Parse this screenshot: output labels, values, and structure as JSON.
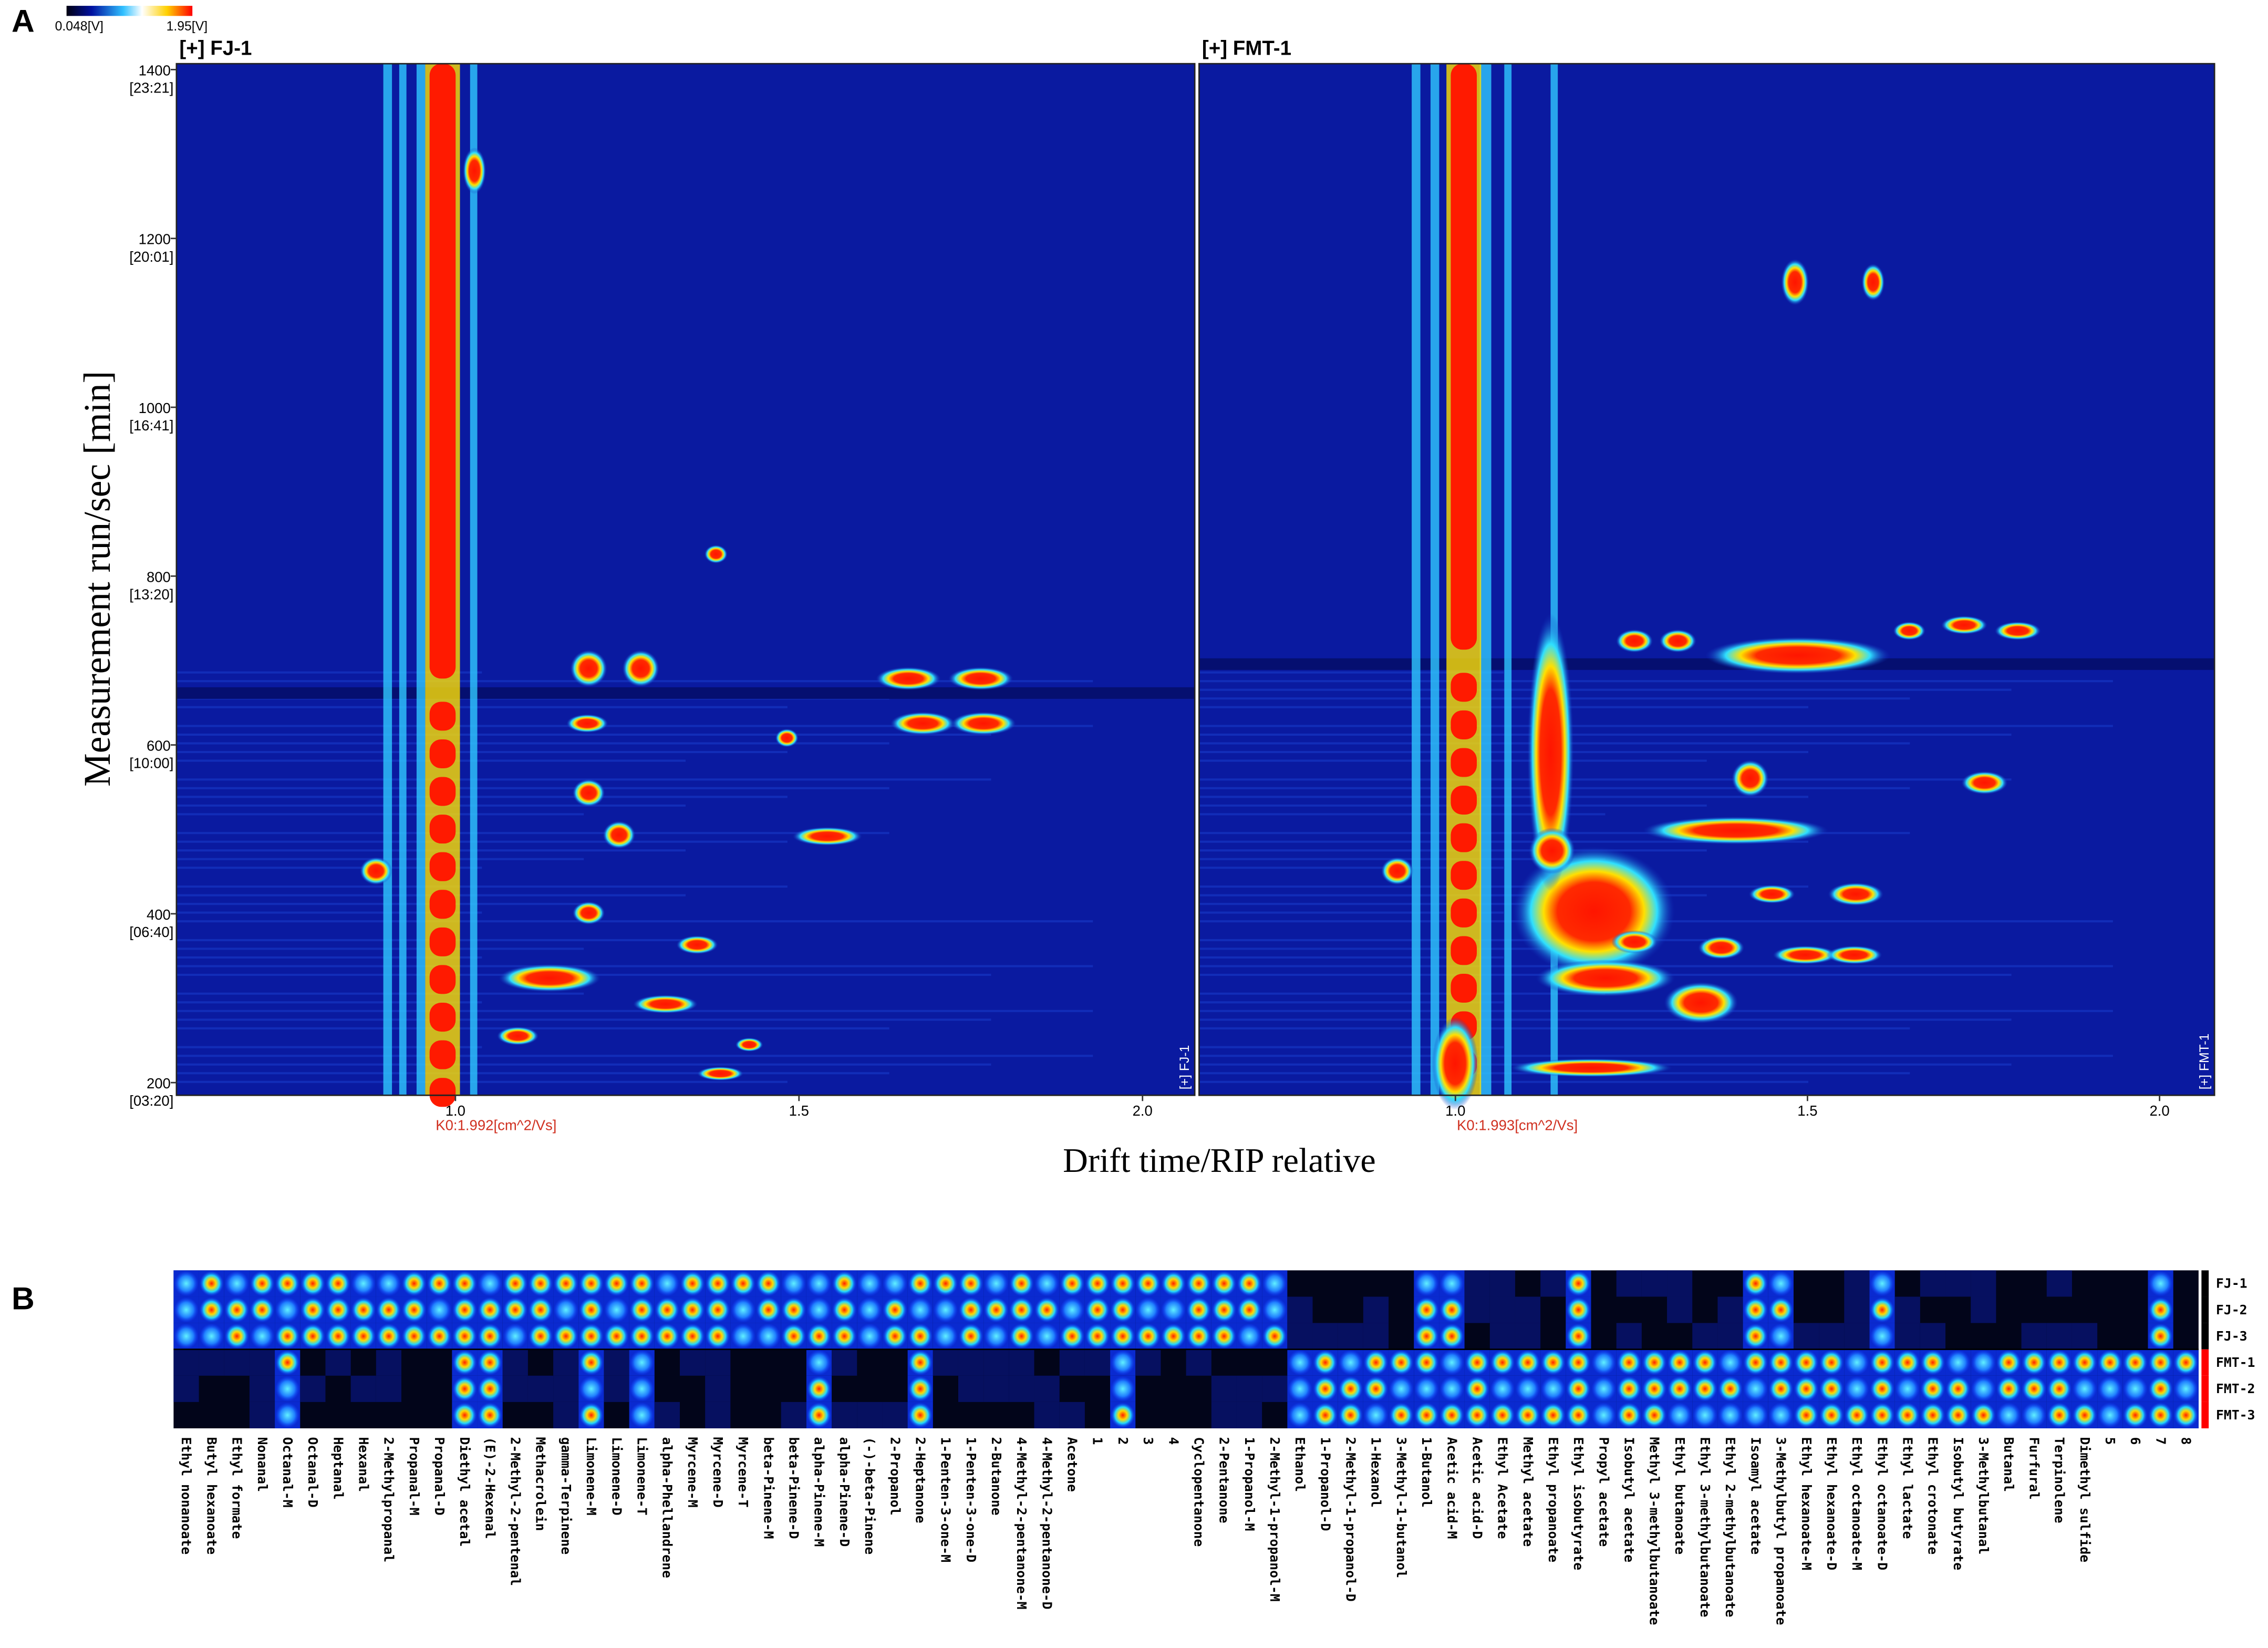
{
  "panel_labels": [
    "A",
    "B"
  ],
  "colorbar": {
    "min_label": "0.048[V]",
    "max_label": "1.95[V]"
  },
  "chart_data": [
    {
      "type": "heatmap",
      "title": "[+] FJ-1",
      "corner_label": "[+] FJ-1",
      "k0_label": "K0:1.992[cm^2/Vs]",
      "xlabel": "Drift time/RIP relative",
      "ylabel": "Measurement run/sec [min]",
      "xlim": [
        0.594,
        2.076
      ],
      "ylim": [
        185,
        1407
      ],
      "xticks": [
        {
          "value": 1,
          "label": "1.0"
        },
        1.5,
        {
          "value": 2,
          "label": "2.0"
        }
      ],
      "yticks": [
        200,
        400,
        600,
        800,
        1000,
        1200,
        1400
      ],
      "ytick_time_labels": [
        "[03:20]",
        "[06:40]",
        "[10:00]",
        "[13:20]",
        "[16:41]",
        "[20:01]",
        "[23:21]"
      ]
    },
    {
      "type": "heatmap",
      "title": "[+] FMT-1",
      "corner_label": "[+] FMT-1",
      "k0_label": "K0:1.993[cm^2/Vs]",
      "xlim": [
        0.636,
        2.078
      ],
      "xticks": [
        {
          "value": 1,
          "label": "1.0"
        },
        1.5,
        {
          "value": 2,
          "label": "2.0"
        }
      ]
    },
    {
      "type": "fingerprint",
      "samples": [
        "FJ-1",
        "FJ-2",
        "FJ-3",
        "FMT-1",
        "FMT-2",
        "FMT-3"
      ],
      "compounds": [
        "Ethyl nonanoate",
        "Butyl hexanoate",
        "Ethyl formate",
        "Nonanal",
        "Octanal-M",
        "Octanal-D",
        "Heptanal",
        "Hexanal",
        "2-Methylpropanal",
        "Propanal-M",
        "Propanal-D",
        "Diethyl acetal",
        "(E)-2-Hexenal",
        "2-Methyl-2-pentenal",
        "Methacrolein",
        "gamma-Terpinene",
        "Limonene-M",
        "Limonene-D",
        "Limonene-T",
        "alpha-Phellandrene",
        "Myrcene-M",
        "Myrcene-D",
        "Myrcene-T",
        "beta-Pinene-M",
        "beta-Pinene-D",
        "alpha-Pinene-M",
        "alpha-Pinene-D",
        "(-)-beta-Pinene",
        "2-Propanol",
        "2-Heptanone",
        "1-Penten-3-one-M",
        "1-Penten-3-one-D",
        "2-Butanone",
        "4-Methyl-2-pentanone-M",
        "4-Methyl-2-pentanone-D",
        "Acetone",
        "1",
        "2",
        "3",
        "4",
        "Cyclopentanone",
        "2-Pentanone",
        "1-Propanol-M",
        "2-Methyl-1-propanol-M",
        "Ethanol",
        "1-Propanol-D",
        "2-Methyl-1-propanol-D",
        "1-Hexanol",
        "3-Methyl-1-butanol",
        "1-Butanol",
        "Acetic acid-M",
        "Acetic acid-D",
        "Ethyl Acetate",
        "Methyl acetate",
        "Ethyl propanoate",
        "Ethyl isobutyrate",
        "Propyl acetate",
        "Isobutyl acetate",
        "Methyl 3-methylbutanoate",
        "Ethyl butanoate",
        "Ethyl 3-methylbutanoate",
        "Ethyl 2-methylbutanoate",
        "Isoamyl acetate",
        "3-Methylbutyl propanoate",
        "Ethyl hexanoate-M",
        "Ethyl hexanoate-D",
        "Ethyl octanoate-M",
        "Ethyl octanoate-D",
        "Ethyl lactate",
        "Ethyl crotonate",
        "Isobutyl butyrate",
        "3-Methylbutanal",
        "Butanal",
        "Furfural",
        "Terpinolene",
        "Dimethyl sulfide",
        "5",
        "6",
        "7",
        "8"
      ]
    }
  ]
}
